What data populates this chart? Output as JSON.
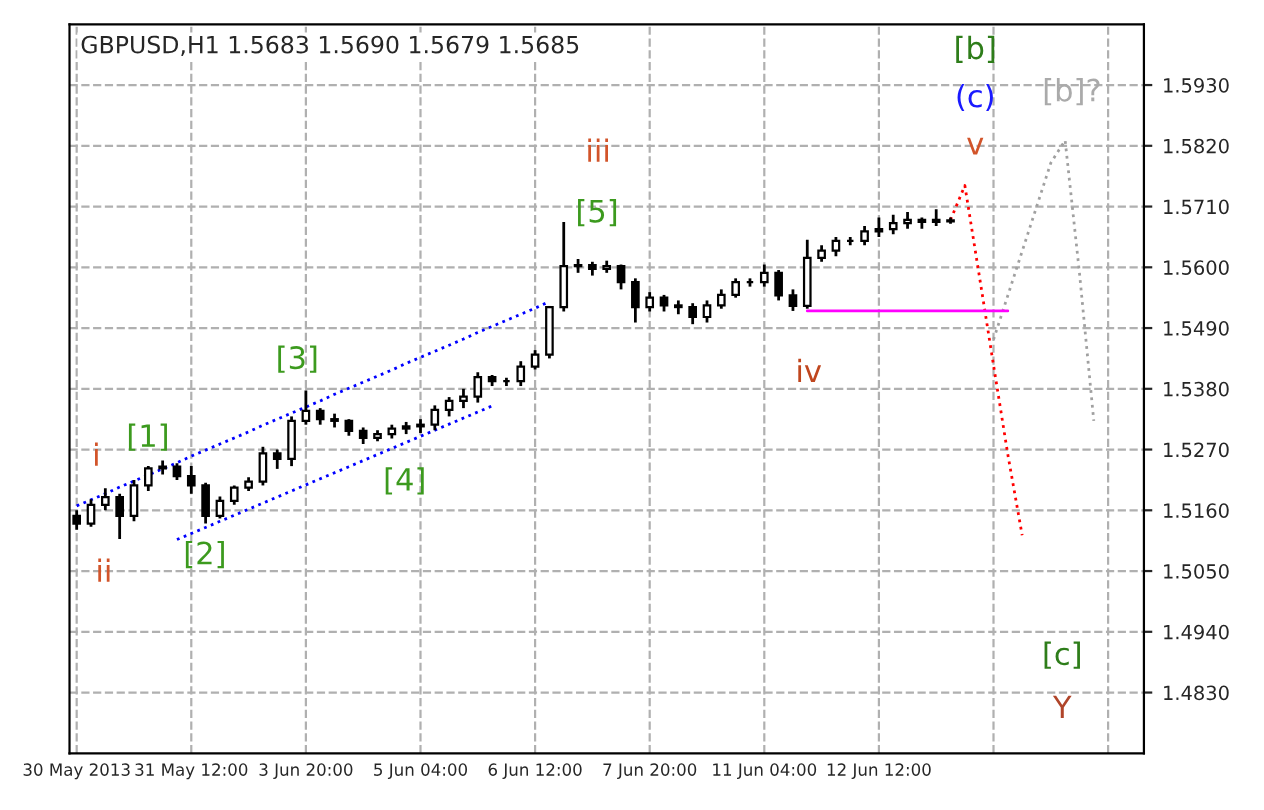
{
  "chart_data": {
    "type": "candlestick",
    "title": "GBPUSD,H1 1.5683 1.5690 1.5679 1.5685",
    "categories": [
      "30 May 2013",
      null,
      null,
      null,
      null,
      null,
      null,
      null,
      "31 May 12:00",
      null,
      null,
      null,
      null,
      null,
      null,
      null,
      "3 Jun 20:00",
      null,
      null,
      null,
      null,
      null,
      null,
      null,
      "5 Jun 04:00",
      null,
      null,
      null,
      null,
      null,
      null,
      null,
      "6 Jun 12:00",
      null,
      null,
      null,
      null,
      null,
      null,
      null,
      "7 Jun 20:00",
      null,
      null,
      null,
      null,
      null,
      null,
      null,
      "11 Jun 04:00",
      null,
      null,
      null,
      null,
      null,
      null,
      null,
      "12 Jun 12:00",
      null,
      null,
      null,
      null,
      null,
      null,
      null,
      null,
      null,
      null,
      null,
      null,
      null,
      null,
      null,
      null,
      null,
      null
    ],
    "ohlc": [
      [
        1.515,
        1.516,
        1.5125,
        1.5136
      ],
      [
        1.5136,
        1.518,
        1.513,
        1.517
      ],
      [
        1.517,
        1.52,
        1.516,
        1.5184
      ],
      [
        1.5184,
        1.519,
        1.5108,
        1.515
      ],
      [
        1.515,
        1.5215,
        1.514,
        1.5205
      ],
      [
        1.5205,
        1.524,
        1.5195,
        1.5236
      ],
      [
        1.5236,
        1.525,
        1.5225,
        1.5239
      ],
      [
        1.5239,
        1.5245,
        1.5215,
        1.5222
      ],
      [
        1.5222,
        1.524,
        1.519,
        1.5205
      ],
      [
        1.5205,
        1.521,
        1.5136,
        1.515
      ],
      [
        1.515,
        1.5185,
        1.5145,
        1.5177
      ],
      [
        1.5177,
        1.5205,
        1.517,
        1.5201
      ],
      [
        1.5201,
        1.522,
        1.5195,
        1.5212
      ],
      [
        1.5212,
        1.5275,
        1.5205,
        1.5263
      ],
      [
        1.5263,
        1.527,
        1.5235,
        1.5253
      ],
      [
        1.5253,
        1.533,
        1.524,
        1.5322
      ],
      [
        1.5322,
        1.5377,
        1.5315,
        1.534
      ],
      [
        1.534,
        1.5345,
        1.5315,
        1.5325
      ],
      [
        1.5325,
        1.5335,
        1.531,
        1.5322
      ],
      [
        1.5322,
        1.5325,
        1.5295,
        1.5304
      ],
      [
        1.5304,
        1.531,
        1.528,
        1.5291
      ],
      [
        1.5291,
        1.5305,
        1.5285,
        1.5298
      ],
      [
        1.5298,
        1.5315,
        1.529,
        1.5308
      ],
      [
        1.5308,
        1.532,
        1.5298,
        1.5312
      ],
      [
        1.5312,
        1.5325,
        1.53,
        1.5315
      ],
      [
        1.5315,
        1.535,
        1.5305,
        1.5342
      ],
      [
        1.5342,
        1.5365,
        1.533,
        1.5358
      ],
      [
        1.5358,
        1.538,
        1.5345,
        1.5366
      ],
      [
        1.5366,
        1.541,
        1.5355,
        1.5401
      ],
      [
        1.5401,
        1.5405,
        1.5385,
        1.5394
      ],
      [
        1.5394,
        1.54,
        1.5385,
        1.5394
      ],
      [
        1.5394,
        1.543,
        1.5385,
        1.542
      ],
      [
        1.542,
        1.545,
        1.5415,
        1.5442
      ],
      [
        1.5442,
        1.553,
        1.5435,
        1.5528
      ],
      [
        1.5528,
        1.5682,
        1.552,
        1.5602
      ],
      [
        1.5602,
        1.5615,
        1.559,
        1.5604
      ],
      [
        1.5604,
        1.561,
        1.5585,
        1.5597
      ],
      [
        1.5597,
        1.5612,
        1.559,
        1.5602
      ],
      [
        1.5602,
        1.5605,
        1.556,
        1.5573
      ],
      [
        1.5573,
        1.558,
        1.55,
        1.5528
      ],
      [
        1.5528,
        1.5555,
        1.552,
        1.5545
      ],
      [
        1.5545,
        1.555,
        1.552,
        1.5531
      ],
      [
        1.5531,
        1.554,
        1.5515,
        1.5528
      ],
      [
        1.5528,
        1.5535,
        1.5497,
        1.551
      ],
      [
        1.551,
        1.554,
        1.55,
        1.5531
      ],
      [
        1.5531,
        1.556,
        1.5525,
        1.555
      ],
      [
        1.555,
        1.558,
        1.5545,
        1.5573
      ],
      [
        1.5573,
        1.558,
        1.5565,
        1.5573
      ],
      [
        1.5573,
        1.5605,
        1.5565,
        1.559
      ],
      [
        1.559,
        1.5595,
        1.554,
        1.5549
      ],
      [
        1.5549,
        1.556,
        1.5521,
        1.553
      ],
      [
        1.553,
        1.565,
        1.5525,
        1.5617
      ],
      [
        1.5617,
        1.564,
        1.561,
        1.563
      ],
      [
        1.563,
        1.5655,
        1.562,
        1.5648
      ],
      [
        1.5648,
        1.5655,
        1.564,
        1.5648
      ],
      [
        1.5648,
        1.5675,
        1.564,
        1.5665
      ],
      [
        1.5665,
        1.569,
        1.5655,
        1.5669
      ],
      [
        1.5669,
        1.5695,
        1.566,
        1.568
      ],
      [
        1.568,
        1.57,
        1.567,
        1.5686
      ],
      [
        1.5686,
        1.569,
        1.567,
        1.5682
      ],
      [
        1.5682,
        1.5705,
        1.5675,
        1.5686
      ],
      [
        1.5683,
        1.569,
        1.5679,
        1.5685
      ],
      null,
      null,
      null,
      null,
      null,
      null,
      null,
      null,
      null,
      null,
      null,
      null,
      null
    ],
    "series": [
      {
        "type": "line",
        "color": "#0000ff",
        "line_style": "dotted",
        "values": [
          1.5168,
          1.5179,
          1.519,
          1.5202,
          1.5213,
          1.5224,
          1.5235,
          1.5246,
          1.5258,
          1.5269,
          1.528,
          1.5291,
          1.5302,
          1.5314,
          1.5325,
          1.5336,
          1.5347,
          1.5358,
          1.537,
          1.5381,
          1.5392,
          1.5403,
          1.5414,
          1.5426,
          1.5437,
          1.5448,
          1.5459,
          1.547,
          1.5482,
          1.5493,
          1.5504,
          1.5515,
          1.5526,
          1.5538,
          null,
          null,
          null,
          null,
          null,
          null,
          null,
          null,
          null,
          null,
          null,
          null,
          null,
          null,
          null,
          null,
          null,
          null,
          null,
          null,
          null,
          null,
          null,
          null,
          null,
          null,
          null,
          null,
          null,
          null,
          null,
          null,
          null,
          null,
          null,
          null,
          null,
          null,
          null,
          null,
          null
        ]
      },
      {
        "type": "line",
        "color": "#0000ff",
        "line_style": "dotted",
        "values": [
          null,
          null,
          null,
          null,
          null,
          null,
          null,
          1.5107,
          1.5118,
          1.5129,
          1.514,
          1.5151,
          1.5162,
          1.5173,
          1.5184,
          1.5195,
          1.5206,
          1.5217,
          1.5228,
          1.5239,
          1.525,
          1.5261,
          1.5272,
          1.5283,
          1.5294,
          1.5305,
          1.5316,
          1.5327,
          1.5338,
          1.5349,
          null,
          null,
          null,
          null,
          null,
          null,
          null,
          null,
          null,
          null,
          null,
          null,
          null,
          null,
          null,
          null,
          null,
          null,
          null,
          null,
          null,
          null,
          null,
          null,
          null,
          null,
          null,
          null,
          null,
          null,
          null,
          null,
          null,
          null,
          null,
          null,
          null,
          null,
          null,
          null,
          null,
          null,
          null,
          null,
          null
        ]
      },
      {
        "type": "line",
        "color": "#ff0000",
        "line_style": "dotted",
        "values": [
          null,
          null,
          null,
          null,
          null,
          null,
          null,
          null,
          null,
          null,
          null,
          null,
          null,
          null,
          null,
          null,
          null,
          null,
          null,
          null,
          null,
          null,
          null,
          null,
          null,
          null,
          null,
          null,
          null,
          null,
          null,
          null,
          null,
          null,
          null,
          null,
          null,
          null,
          null,
          null,
          null,
          null,
          null,
          null,
          null,
          null,
          null,
          null,
          null,
          null,
          null,
          null,
          null,
          null,
          null,
          null,
          null,
          null,
          null,
          null,
          null,
          1.5686,
          1.5748,
          1.5586,
          1.5423,
          1.5261,
          1.5115,
          null,
          null,
          null,
          null,
          null,
          null,
          null,
          null
        ]
      },
      {
        "type": "line",
        "color": "#a0a0a0",
        "line_style": "dotted",
        "values": [
          null,
          null,
          null,
          null,
          null,
          null,
          null,
          null,
          null,
          null,
          null,
          null,
          null,
          null,
          null,
          null,
          null,
          null,
          null,
          null,
          null,
          null,
          null,
          null,
          null,
          null,
          null,
          null,
          null,
          null,
          null,
          null,
          null,
          null,
          null,
          null,
          null,
          null,
          null,
          null,
          null,
          null,
          null,
          null,
          null,
          null,
          null,
          null,
          null,
          null,
          null,
          null,
          null,
          null,
          null,
          null,
          null,
          null,
          null,
          null,
          null,
          null,
          null,
          null,
          1.5469,
          1.5549,
          1.5629,
          1.5709,
          1.5789,
          1.583,
          1.559,
          1.5322,
          null,
          null,
          null
        ]
      },
      {
        "type": "line",
        "color": "#ff00ff",
        "line_style": "solid",
        "values": [
          null,
          null,
          null,
          null,
          null,
          null,
          null,
          null,
          null,
          null,
          null,
          null,
          null,
          null,
          null,
          null,
          null,
          null,
          null,
          null,
          null,
          null,
          null,
          null,
          null,
          null,
          null,
          null,
          null,
          null,
          null,
          null,
          null,
          null,
          null,
          null,
          null,
          null,
          null,
          null,
          null,
          null,
          null,
          null,
          null,
          null,
          null,
          null,
          null,
          null,
          null,
          1.5521,
          1.5521,
          1.5521,
          1.5521,
          1.5521,
          1.5521,
          1.5521,
          1.5521,
          1.5521,
          1.5521,
          1.5521,
          1.5521,
          1.5521,
          1.5521,
          1.5521,
          null,
          null,
          null,
          null,
          null,
          null,
          null,
          null,
          null
        ]
      }
    ],
    "annotations": [
      "i",
      "ii",
      "[1]",
      "[2]",
      "[3]",
      "[4]",
      "iii",
      "[5]",
      "iv",
      "v",
      "(c)",
      "[b]",
      "[b]?",
      "[c]",
      "Y"
    ],
    "ylim": [
      1.472,
      1.604
    ],
    "yticks": [
      {
        "value": 1.483,
        "label": "1.4830"
      },
      {
        "value": 1.494,
        "label": "1.4940"
      },
      {
        "value": 1.505,
        "label": "1.5050"
      },
      {
        "value": 1.516,
        "label": "1.5160"
      },
      {
        "value": 1.527,
        "label": "1.5270"
      },
      {
        "value": 1.538,
        "label": "1.5380"
      },
      {
        "value": 1.549,
        "label": "1.5490"
      },
      {
        "value": 1.56,
        "label": "1.5600"
      },
      {
        "value": 1.571,
        "label": "1.5710"
      },
      {
        "value": 1.582,
        "label": "1.5820"
      },
      {
        "value": 1.593,
        "label": "1.5930"
      }
    ],
    "grid": true
  }
}
